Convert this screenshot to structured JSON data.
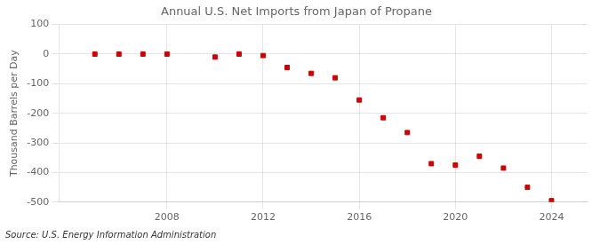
{
  "chart_data": {
    "type": "scatter",
    "title": "Annual U.S. Net Imports from Japan of Propane",
    "ylabel": "Thousand Barrels per Day",
    "annotations": [
      "Source: U.S. Energy Information Administration"
    ],
    "x": [
      2005,
      2006,
      2007,
      2008,
      2010,
      2011,
      2012,
      2013,
      2014,
      2015,
      2016,
      2017,
      2018,
      2019,
      2020,
      2021,
      2022,
      2023,
      2024
    ],
    "values": [
      0,
      0,
      0,
      0,
      -10,
      0,
      -5,
      -45,
      -65,
      -80,
      -155,
      -215,
      -265,
      -370,
      -375,
      -345,
      -385,
      -450,
      -495
    ],
    "color": "#cc0000",
    "marker": "square",
    "xlim": [
      2003.5,
      2025.5
    ],
    "ylim": [
      -500,
      100
    ],
    "xticks": [
      2008,
      2012,
      2016,
      2020,
      2024
    ],
    "yticks": [
      100,
      0,
      -100,
      -200,
      -300,
      -400,
      -500
    ],
    "grid": true
  }
}
